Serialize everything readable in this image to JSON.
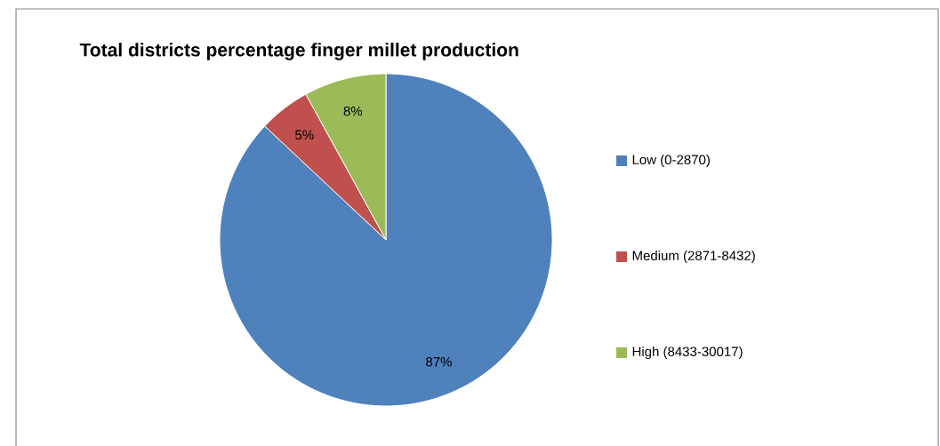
{
  "chart_data": {
    "type": "pie",
    "title": "Total districts percentage finger millet production",
    "categories": [
      "Low (0-2870)",
      "Medium (2871-8432)",
      "High (8433-30017)"
    ],
    "values": [
      87,
      5,
      8
    ],
    "colors": [
      "#4f81bd",
      "#c0504d",
      "#9bbb59"
    ],
    "value_labels": [
      "87%",
      "5%",
      "8%"
    ],
    "legend": "right"
  }
}
